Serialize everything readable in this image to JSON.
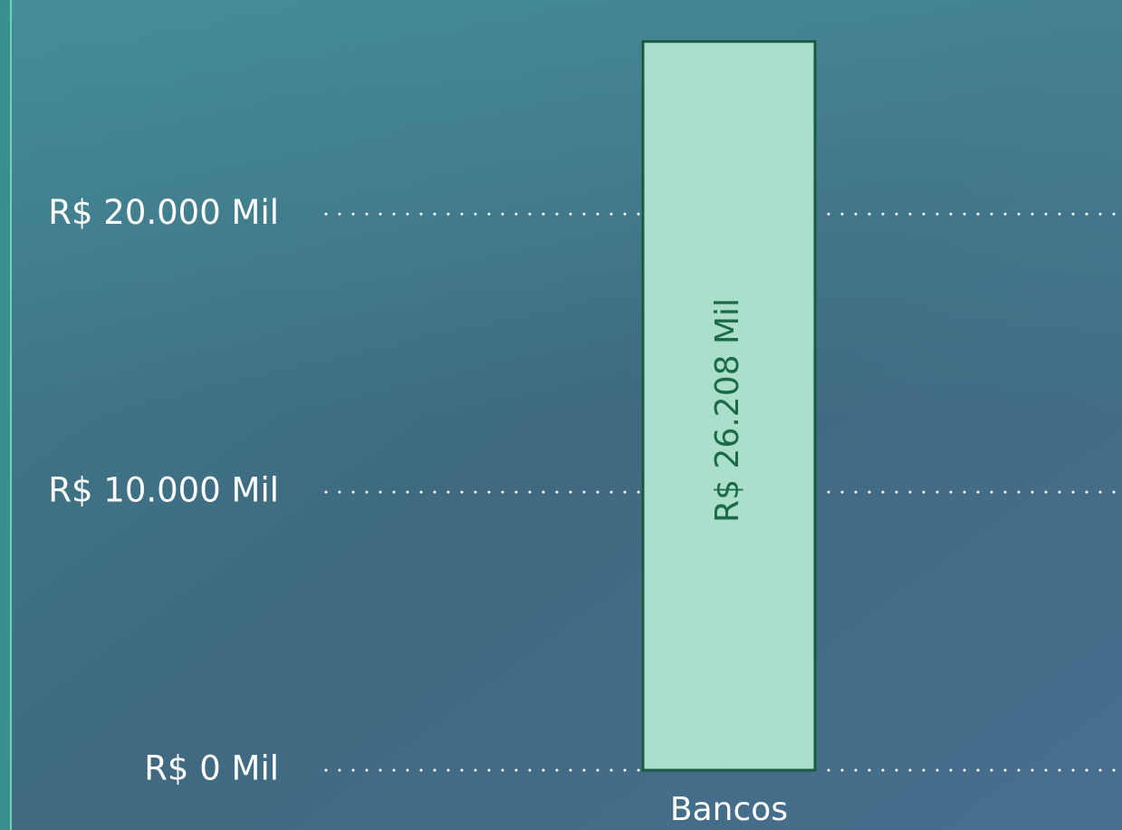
{
  "chart_data": {
    "type": "bar",
    "categories": [
      "Bancos"
    ],
    "values": [
      26208
    ],
    "value_labels": [
      "R$ 26.208 Mil"
    ],
    "color": "#abdfcb",
    "ylim": [
      0,
      27700
    ],
    "yticks": [
      {
        "value": 0,
        "label": "R$ 0 Mil"
      },
      {
        "value": 10000,
        "label": "R$ 10.000 Mil"
      },
      {
        "value": 20000,
        "label": "R$ 20.000 Mil"
      }
    ],
    "grid": true
  }
}
